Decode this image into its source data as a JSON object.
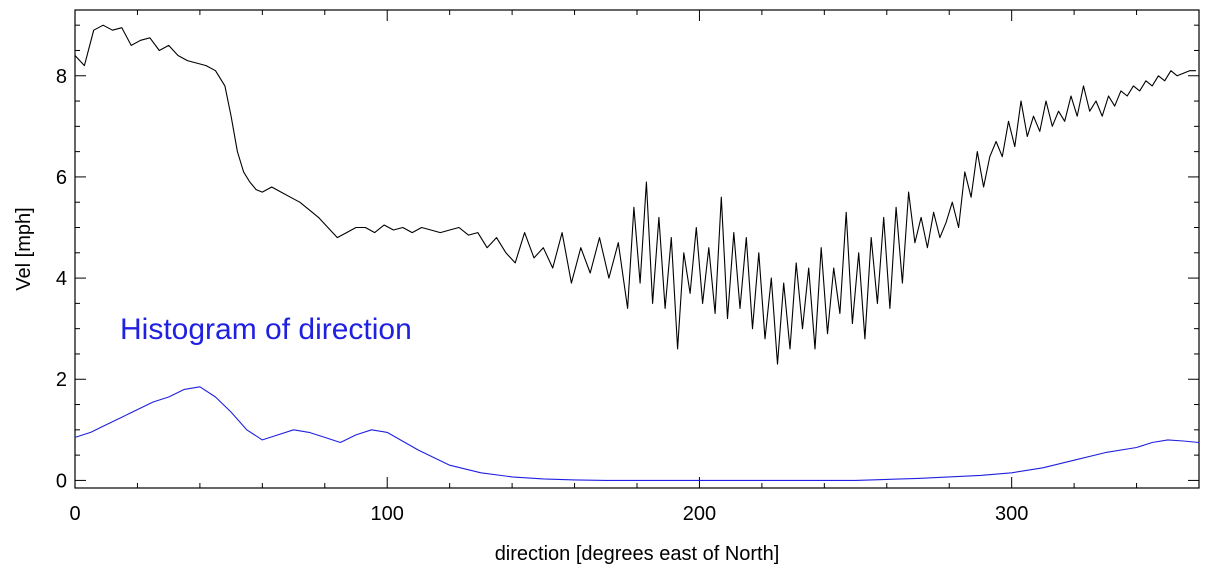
{
  "chart_data": {
    "type": "line",
    "title": "",
    "xlabel": "direction [degrees east of North]",
    "ylabel": "Vel [mph]",
    "xlim": [
      0,
      360
    ],
    "ylim": [
      -0.15,
      9.3
    ],
    "x_ticks": [
      "0",
      "100",
      "200",
      "300"
    ],
    "y_ticks": [
      "0",
      "2",
      "4",
      "6",
      "8"
    ],
    "grid": false,
    "annotation": {
      "text": "Histogram of direction",
      "color": "#2020e0"
    },
    "series": [
      {
        "style": {
          "color": "#000000"
        },
        "x": [
          0,
          3,
          6,
          9,
          12,
          15,
          18,
          21,
          24,
          27,
          30,
          33,
          36,
          39,
          42,
          45,
          48,
          50,
          52,
          54,
          56,
          58,
          60,
          63,
          66,
          69,
          72,
          75,
          78,
          81,
          84,
          87,
          90,
          93,
          96,
          99,
          102,
          105,
          108,
          111,
          114,
          117,
          120,
          123,
          126,
          129,
          132,
          135,
          138,
          141,
          144,
          147,
          150,
          153,
          156,
          159,
          162,
          165,
          168,
          171,
          174,
          177,
          179,
          181,
          183,
          185,
          187,
          189,
          191,
          193,
          195,
          197,
          199,
          201,
          203,
          205,
          207,
          209,
          211,
          213,
          215,
          217,
          219,
          221,
          223,
          225,
          227,
          229,
          231,
          233,
          235,
          237,
          239,
          241,
          243,
          245,
          247,
          249,
          251,
          253,
          255,
          257,
          259,
          261,
          263,
          265,
          267,
          269,
          271,
          273,
          275,
          277,
          279,
          281,
          283,
          285,
          287,
          289,
          291,
          293,
          295,
          297,
          299,
          301,
          303,
          305,
          307,
          309,
          311,
          313,
          315,
          317,
          319,
          321,
          323,
          325,
          327,
          329,
          331,
          333,
          335,
          337,
          339,
          341,
          343,
          345,
          347,
          349,
          351,
          353,
          355,
          357,
          359
        ],
        "values": [
          8.4,
          8.2,
          8.9,
          9.0,
          8.9,
          8.95,
          8.6,
          8.7,
          8.75,
          8.5,
          8.6,
          8.4,
          8.3,
          8.25,
          8.2,
          8.1,
          7.8,
          7.2,
          6.5,
          6.1,
          5.9,
          5.75,
          5.7,
          5.8,
          5.7,
          5.6,
          5.5,
          5.35,
          5.2,
          5.0,
          4.8,
          4.9,
          5.0,
          5.0,
          4.9,
          5.05,
          4.95,
          5.0,
          4.9,
          5.0,
          4.95,
          4.9,
          4.95,
          5.0,
          4.85,
          4.9,
          4.6,
          4.8,
          4.5,
          4.3,
          4.9,
          4.4,
          4.6,
          4.2,
          4.9,
          3.9,
          4.6,
          4.1,
          4.8,
          4.0,
          4.7,
          3.4,
          5.4,
          3.9,
          5.9,
          3.5,
          5.2,
          3.4,
          4.8,
          2.6,
          4.5,
          3.7,
          5.0,
          3.5,
          4.6,
          3.3,
          5.6,
          3.2,
          4.9,
          3.4,
          4.8,
          3.0,
          4.5,
          2.8,
          4.0,
          2.3,
          3.9,
          2.6,
          4.3,
          3.0,
          4.2,
          2.6,
          4.6,
          2.9,
          4.2,
          3.3,
          5.3,
          3.1,
          4.5,
          2.8,
          4.8,
          3.5,
          5.2,
          3.4,
          5.4,
          3.9,
          5.7,
          4.7,
          5.2,
          4.6,
          5.3,
          4.8,
          5.1,
          5.5,
          5.0,
          6.1,
          5.6,
          6.5,
          5.8,
          6.4,
          6.7,
          6.4,
          7.1,
          6.6,
          7.5,
          6.8,
          7.2,
          6.9,
          7.5,
          7.0,
          7.3,
          7.1,
          7.6,
          7.2,
          7.8,
          7.3,
          7.5,
          7.2,
          7.6,
          7.4,
          7.7,
          7.6,
          7.8,
          7.7,
          7.9,
          7.8,
          8.0,
          7.9,
          8.1,
          8.0,
          8.05,
          8.1,
          8.1
        ]
      },
      {
        "style": {
          "color": "#2020e0"
        },
        "x": [
          0,
          5,
          10,
          15,
          20,
          25,
          30,
          35,
          40,
          45,
          50,
          55,
          60,
          65,
          70,
          75,
          80,
          85,
          90,
          95,
          100,
          110,
          120,
          130,
          140,
          150,
          160,
          170,
          180,
          190,
          200,
          210,
          220,
          230,
          240,
          250,
          260,
          270,
          280,
          290,
          300,
          310,
          320,
          330,
          340,
          345,
          350,
          355,
          360
        ],
        "values": [
          0.85,
          0.95,
          1.1,
          1.25,
          1.4,
          1.55,
          1.65,
          1.8,
          1.85,
          1.65,
          1.35,
          1.0,
          0.8,
          0.9,
          1.0,
          0.95,
          0.85,
          0.75,
          0.9,
          1.0,
          0.95,
          0.6,
          0.3,
          0.15,
          0.07,
          0.03,
          0.01,
          0.0,
          0.0,
          0.0,
          0.0,
          0.0,
          0.0,
          0.0,
          0.0,
          0.0,
          0.02,
          0.04,
          0.07,
          0.1,
          0.15,
          0.25,
          0.4,
          0.55,
          0.65,
          0.75,
          0.8,
          0.78,
          0.75
        ]
      }
    ]
  }
}
